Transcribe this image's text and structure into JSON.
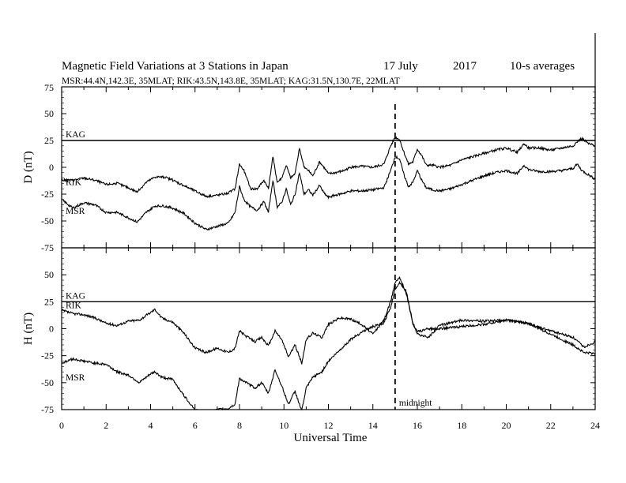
{
  "chart_data": {
    "type": "line",
    "title": "Magnetic Field Variations at 3 Stations in Japan",
    "date": "17 July",
    "year": "2017",
    "resolution": "10-s averages",
    "subtitle": "MSR:44.4N,142.3E, 35MLAT;  RIK:43.5N,143.8E, 35MLAT;  KAG:31.5N,130.7E, 22MLAT",
    "xlabel": "Universal Time",
    "xlim": [
      0,
      24
    ],
    "xticks": [
      "0",
      "2",
      "4",
      "6",
      "8",
      "10",
      "12",
      "14",
      "16",
      "18",
      "20",
      "22",
      "24"
    ],
    "midnight_ut": 15,
    "midnight_label": "midnight",
    "grid": false,
    "panels": [
      {
        "ylabel": "D (nT)",
        "ylim": [
          -75,
          75
        ],
        "yticks": [
          "75",
          "50",
          "25",
          "0",
          "-25",
          "-50",
          "-75"
        ],
        "series": [
          {
            "name": "KAG",
            "x": [
              0,
              24
            ],
            "values": [
              25,
              25
            ]
          },
          {
            "name": "RIK",
            "x": [
              0,
              0.5,
              1,
              1.5,
              2,
              2.5,
              3,
              3.4,
              3.8,
              4.2,
              4.6,
              5,
              5.5,
              6,
              6.5,
              7,
              7.5,
              7.8,
              8,
              8.2,
              8.5,
              8.8,
              9.1,
              9.3,
              9.5,
              9.7,
              9.9,
              10.1,
              10.3,
              10.5,
              10.7,
              10.9,
              11.1,
              11.3,
              11.6,
              11.8,
              12,
              12.3,
              12.7,
              13,
              13.5,
              14,
              14.5,
              14.8,
              15,
              15.2,
              15.4,
              15.6,
              15.8,
              16,
              16.2,
              16.4,
              16.7,
              17,
              17.5,
              18,
              18.5,
              19,
              19.5,
              20,
              20.5,
              20.8,
              21,
              21.5,
              22,
              22.5,
              23,
              23.2,
              23.4,
              23.7,
              24
            ],
            "values": [
              -12,
              -12,
              -10,
              -12,
              -16,
              -15,
              -19,
              -23,
              -14,
              -9,
              -9,
              -12,
              -17,
              -22,
              -27,
              -26,
              -24,
              -20,
              3,
              -3,
              -20,
              -20,
              -12,
              -20,
              10,
              -14,
              -10,
              2,
              -10,
              -6,
              18,
              0,
              -3,
              -8,
              5,
              0,
              -6,
              -5,
              -3,
              0,
              1,
              0,
              3,
              20,
              28,
              26,
              14,
              3,
              5,
              17,
              11,
              2,
              2,
              0,
              2,
              7,
              10,
              13,
              16,
              18,
              14,
              22,
              18,
              18,
              16,
              18,
              20,
              24,
              27,
              22,
              20
            ]
          },
          {
            "name": "MSR",
            "x": [
              0,
              0.5,
              1,
              1.5,
              2,
              2.5,
              3,
              3.4,
              3.8,
              4.2,
              4.6,
              5,
              5.5,
              6,
              6.5,
              7,
              7.5,
              7.8,
              8,
              8.2,
              8.5,
              8.8,
              9.1,
              9.3,
              9.5,
              9.7,
              9.9,
              10.1,
              10.3,
              10.5,
              10.7,
              10.9,
              11.1,
              11.3,
              11.6,
              11.8,
              12,
              12.3,
              12.7,
              13,
              13.5,
              14,
              14.5,
              14.8,
              15,
              15.2,
              15.4,
              15.6,
              15.8,
              16,
              16.2,
              16.4,
              16.7,
              17,
              17.5,
              18,
              18.5,
              19,
              19.5,
              20,
              20.5,
              20.8,
              21,
              21.5,
              22,
              22.5,
              23,
              23.2,
              23.4,
              23.7,
              24
            ],
            "values": [
              -30,
              -38,
              -33,
              -35,
              -42,
              -42,
              -47,
              -51,
              -42,
              -36,
              -36,
              -38,
              -43,
              -52,
              -58,
              -55,
              -52,
              -42,
              -18,
              -30,
              -37,
              -40,
              -32,
              -42,
              -12,
              -37,
              -33,
              -20,
              -35,
              -25,
              -5,
              -25,
              -21,
              -26,
              -17,
              -24,
              -28,
              -26,
              -24,
              -22,
              -22,
              -21,
              -19,
              -3,
              10,
              8,
              -7,
              -18,
              -14,
              -3,
              -12,
              -19,
              -21,
              -22,
              -20,
              -16,
              -12,
              -8,
              -5,
              -3,
              -6,
              2,
              -2,
              -4,
              -4,
              -3,
              -1,
              3,
              -3,
              -7,
              -11
            ]
          }
        ]
      },
      {
        "ylabel": "H (nT)",
        "ylim": [
          -75,
          75
        ],
        "yticks": [
          "75",
          "50",
          "25",
          "0",
          "-25",
          "-50",
          "-75"
        ],
        "series": [
          {
            "name": "KAG",
            "x": [
              0,
              24
            ],
            "values": [
              25,
              25
            ]
          },
          {
            "name": "RIK",
            "x": [
              0,
              0.5,
              1,
              1.5,
              2,
              2.5,
              3,
              3.5,
              4,
              4.2,
              4.5,
              5,
              5.5,
              6,
              6.5,
              7,
              7.5,
              7.8,
              8,
              8.3,
              8.7,
              9,
              9.3,
              9.6,
              9.9,
              10.2,
              10.5,
              10.8,
              11,
              11.3,
              11.7,
              12,
              12.5,
              13,
              13.5,
              14,
              14.5,
              14.8,
              15,
              15.2,
              15.5,
              15.8,
              16,
              16.5,
              17,
              18,
              19,
              20,
              21,
              21.5,
              22,
              22.5,
              23,
              23.5,
              24
            ],
            "values": [
              17,
              14,
              13,
              10,
              5,
              3,
              7,
              8,
              15,
              18,
              10,
              6,
              -4,
              -18,
              -22,
              -18,
              -22,
              -18,
              -2,
              -7,
              -12,
              -8,
              -16,
              -2,
              -10,
              -26,
              -15,
              -32,
              -10,
              -4,
              -8,
              4,
              10,
              9,
              4,
              -5,
              8,
              25,
              43,
              48,
              33,
              5,
              -5,
              -8,
              3,
              8,
              7,
              8,
              5,
              1,
              -2,
              -5,
              -8,
              -17,
              -12
            ]
          },
          {
            "name": "MSR",
            "x": [
              0,
              0.5,
              1,
              1.5,
              2,
              2.5,
              3,
              3.5,
              4,
              4.2,
              4.5,
              5,
              5.5,
              6,
              6.5,
              7,
              7.5,
              7.8,
              8,
              8.3,
              8.7,
              9,
              9.3,
              9.6,
              9.9,
              10.2,
              10.5,
              10.8,
              11,
              11.3,
              11.7,
              12,
              12.5,
              13,
              13.5,
              14,
              14.5,
              14.8,
              15,
              15.2,
              15.5,
              15.8,
              16,
              16.5,
              17,
              18,
              19,
              20,
              21,
              21.5,
              22,
              22.5,
              23,
              23.5,
              24
            ],
            "values": [
              -32,
              -28,
              -30,
              -32,
              -33,
              -40,
              -43,
              -50,
              -42,
              -40,
              -45,
              -47,
              -62,
              -75,
              -78,
              -75,
              -74,
              -70,
              -46,
              -50,
              -55,
              -50,
              -60,
              -38,
              -53,
              -70,
              -58,
              -76,
              -55,
              -45,
              -40,
              -30,
              -20,
              -10,
              -3,
              2,
              5,
              20,
              37,
              43,
              35,
              5,
              -3,
              0,
              0,
              2,
              4,
              8,
              5,
              0,
              -5,
              -10,
              -15,
              -22,
              -23
            ]
          }
        ]
      }
    ]
  }
}
